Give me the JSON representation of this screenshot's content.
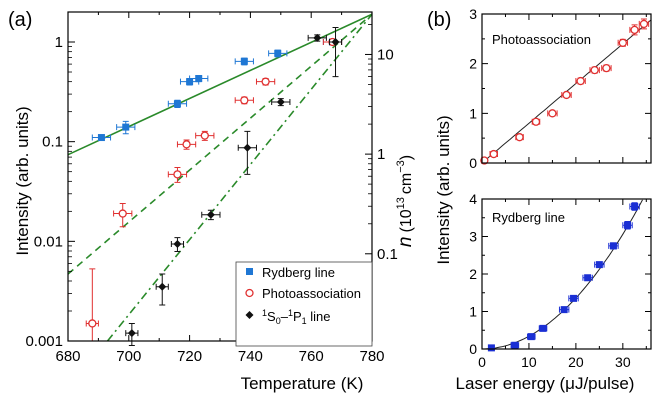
{
  "chart_data": [
    {
      "panel_label": "(a)",
      "type": "scatter",
      "xlabel": "Temperature (K)",
      "ylabel": "Intensity (arb. units)",
      "y2label_main": "n",
      "y2label_unit": "(10",
      "y2label_exp": "13",
      "y2label_tail": "cm",
      "y2label_exp2": "−3",
      "y2label_close": ")",
      "xlim": [
        680,
        780
      ],
      "ylim": [
        0.001,
        2
      ],
      "yscale": "log",
      "xticks": [
        "680",
        "700",
        "720",
        "740",
        "760",
        "780"
      ],
      "yticks": [
        {
          "v": 0.001,
          "label": "0.001"
        },
        {
          "v": 0.01,
          "label": "0.01"
        },
        {
          "v": 0.1,
          "label": "0.1"
        },
        {
          "v": 1,
          "label": "1"
        }
      ],
      "y2ticks": [
        {
          "v": 0.0075,
          "label": "0.1"
        },
        {
          "v": 0.075,
          "label": "1"
        },
        {
          "v": 0.75,
          "label": "10"
        }
      ],
      "legend_position": "bottom-right",
      "series": [
        {
          "name": "Rydberg line",
          "marker": "square",
          "color": "#1f77d4",
          "points": [
            {
              "x": 691,
              "y": 0.11,
              "xerr": 3,
              "yerr": 0.004
            },
            {
              "x": 699,
              "y": 0.14,
              "xerr": 3,
              "yerr": 0.02
            },
            {
              "x": 716,
              "y": 0.24,
              "xerr": 3,
              "yerr": 0.02
            },
            {
              "x": 720,
              "y": 0.4,
              "xerr": 3,
              "yerr": 0.03
            },
            {
              "x": 723,
              "y": 0.43,
              "xerr": 3,
              "yerr": 0.03
            },
            {
              "x": 738,
              "y": 0.64,
              "xerr": 3,
              "yerr": 0.05
            },
            {
              "x": 749,
              "y": 0.77,
              "xerr": 3,
              "yerr": 0.06
            },
            {
              "x": 767,
              "y": 1.0,
              "xerr": 3,
              "yerr": 0.05
            }
          ]
        },
        {
          "name": "Photoassociation",
          "marker": "circle-open",
          "color": "#e03030",
          "points": [
            {
              "x": 688,
              "y": 0.0015,
              "xerr": 2,
              "yerr_lo": 0.0005,
              "yerr_hi": 0.0038
            },
            {
              "x": 698,
              "y": 0.019,
              "xerr": 3,
              "yerr": 0.005
            },
            {
              "x": 716,
              "y": 0.047,
              "xerr": 3,
              "yerr": 0.008
            },
            {
              "x": 719,
              "y": 0.094,
              "xerr": 3,
              "yerr": 0.01
            },
            {
              "x": 725,
              "y": 0.115,
              "xerr": 3,
              "yerr": 0.012
            },
            {
              "x": 738,
              "y": 0.26,
              "xerr": 3,
              "yerr": 0.02
            },
            {
              "x": 745,
              "y": 0.4,
              "xerr": 3,
              "yerr": 0.03
            },
            {
              "x": 767,
              "y": 1.0,
              "xerr": 3,
              "yerr": 0.06
            }
          ]
        },
        {
          "name": "1S0-1P1 line",
          "marker": "diamond",
          "color": "#111111",
          "points": [
            {
              "x": 701,
              "y": 0.0012,
              "xerr": 2,
              "yerr": 0.0003
            },
            {
              "x": 711,
              "y": 0.0035,
              "xerr": 2,
              "yerr": 0.0012
            },
            {
              "x": 716,
              "y": 0.0094,
              "xerr": 2,
              "yerr": 0.0015
            },
            {
              "x": 727,
              "y": 0.0185,
              "xerr": 3,
              "yerr": 0.002
            },
            {
              "x": 739,
              "y": 0.087,
              "xerr": 3,
              "yerr_lo": 0.04,
              "yerr_hi": 0.04
            },
            {
              "x": 750,
              "y": 0.25,
              "xerr": 3,
              "yerr": 0.02
            },
            {
              "x": 762,
              "y": 1.1,
              "xerr": 3,
              "yerr": 0.08
            },
            {
              "x": 768,
              "y": 1.0,
              "xerr": 2,
              "yerr_lo": 0.55,
              "yerr_hi": 0.4
            }
          ]
        }
      ],
      "fits": [
        {
          "style": "solid",
          "color": "#2a8a2a",
          "x1": 680,
          "y1": 0.074,
          "x2": 780,
          "y2": 1.9
        },
        {
          "style": "dashed",
          "color": "#2a8a2a",
          "x1": 680,
          "y1": 0.0047,
          "x2": 780,
          "y2": 1.9
        },
        {
          "style": "dashdot",
          "color": "#2a8a2a",
          "x1": 693,
          "y1": 0.001,
          "x2": 780,
          "y2": 1.9
        }
      ],
      "legend": {
        "rydberg": "Rydberg line",
        "photo": "Photoassociation",
        "line_a": "S",
        "line_a_sup": "1",
        "line_a_sub": "0",
        "line_dash": "–",
        "line_b": "P",
        "line_b_sup": "1",
        "line_b_sub": "1",
        "line_tail": " line"
      }
    },
    {
      "panel_label": "(b)",
      "type": "scatter",
      "shared_ylabel": "Intensity (arb. units)",
      "xlabel": "Laser energy (μJ/pulse)",
      "subplots": [
        {
          "name": "Photoassociation",
          "marker": "circle-open",
          "color": "#e03030",
          "xlim": [
            0,
            36
          ],
          "ylim": [
            0,
            3
          ],
          "xticks": [
            "0",
            "10",
            "20",
            "30"
          ],
          "yticks": [
            "0",
            "1",
            "2",
            "3"
          ],
          "fit": "linear",
          "points": [
            {
              "x": 0.5,
              "y": 0.05,
              "xerr": 0.6,
              "yerr": 0.03
            },
            {
              "x": 2.5,
              "y": 0.18,
              "xerr": 0.8,
              "yerr": 0.04
            },
            {
              "x": 8,
              "y": 0.52,
              "xerr": 0.8,
              "yerr": 0.05
            },
            {
              "x": 11.5,
              "y": 0.83,
              "xerr": 0.8,
              "yerr": 0.05
            },
            {
              "x": 15,
              "y": 1.0,
              "xerr": 1,
              "yerr": 0.05
            },
            {
              "x": 18,
              "y": 1.37,
              "xerr": 1,
              "yerr": 0.05
            },
            {
              "x": 21,
              "y": 1.65,
              "xerr": 1,
              "yerr": 0.06
            },
            {
              "x": 24,
              "y": 1.87,
              "xerr": 1,
              "yerr": 0.06
            },
            {
              "x": 26.5,
              "y": 1.91,
              "xerr": 1,
              "yerr": 0.06
            },
            {
              "x": 30,
              "y": 2.42,
              "xerr": 1,
              "yerr": 0.07
            },
            {
              "x": 32.5,
              "y": 2.68,
              "xerr": 1,
              "yerr": 0.1
            },
            {
              "x": 34.5,
              "y": 2.8,
              "xerr": 1,
              "yerr": 0.1
            }
          ]
        },
        {
          "name": "Rydberg line",
          "marker": "square",
          "color": "#1a2fd4",
          "xlim": [
            0,
            36
          ],
          "ylim": [
            0,
            4
          ],
          "xticks": [
            "0",
            "10",
            "20",
            "30"
          ],
          "yticks": [
            "0",
            "1",
            "2",
            "3",
            "4"
          ],
          "fit": "quadratic",
          "points": [
            {
              "x": 2,
              "y": 0.03,
              "xerr": 0.6,
              "yerr": 0.02
            },
            {
              "x": 7,
              "y": 0.1,
              "xerr": 0.8,
              "yerr": 0.03
            },
            {
              "x": 10.5,
              "y": 0.33,
              "xerr": 0.8,
              "yerr": 0.04
            },
            {
              "x": 13,
              "y": 0.55,
              "xerr": 0.8,
              "yerr": 0.05
            },
            {
              "x": 17.5,
              "y": 1.05,
              "xerr": 1,
              "yerr": 0.06
            },
            {
              "x": 19.5,
              "y": 1.35,
              "xerr": 1,
              "yerr": 0.07
            },
            {
              "x": 22.5,
              "y": 1.9,
              "xerr": 1,
              "yerr": 0.07
            },
            {
              "x": 25,
              "y": 2.25,
              "xerr": 1,
              "yerr": 0.07
            },
            {
              "x": 28,
              "y": 2.75,
              "xerr": 1,
              "yerr": 0.08
            },
            {
              "x": 31,
              "y": 3.3,
              "xerr": 1,
              "yerr": 0.1
            },
            {
              "x": 32.5,
              "y": 3.8,
              "xerr": 1,
              "yerr": 0.1
            }
          ]
        }
      ]
    }
  ]
}
